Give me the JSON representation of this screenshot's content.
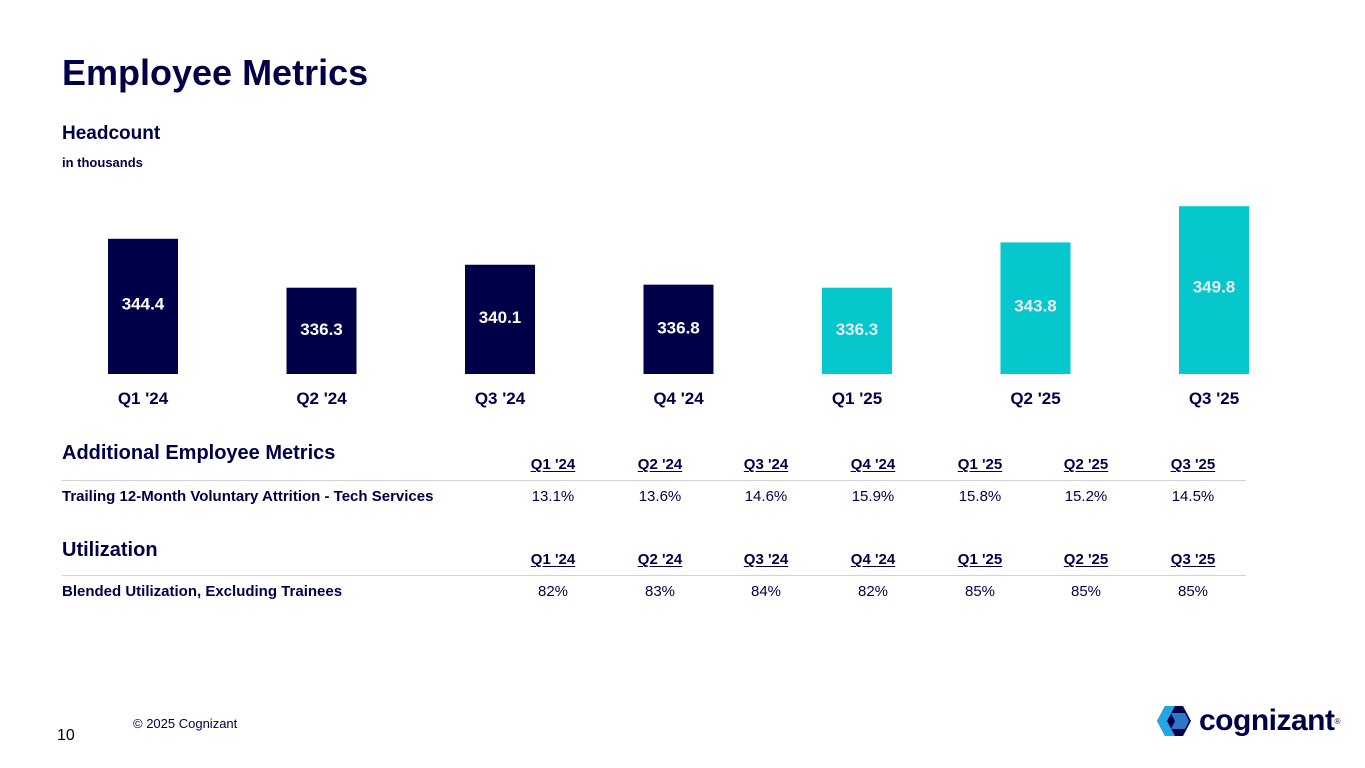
{
  "page": {
    "title": "Employee Metrics",
    "page_number": "10",
    "copyright": "© 2025 Cognizant",
    "logo_text": "cognizant",
    "logo_mark": "®"
  },
  "headcount": {
    "title": "Headcount",
    "unit": "in thousands"
  },
  "chart_data": {
    "type": "bar",
    "title": "Headcount",
    "subtitle": "in thousands",
    "categories": [
      "Q1 '24",
      "Q2 '24",
      "Q3 '24",
      "Q4 '24",
      "Q1 '25",
      "Q2 '25",
      "Q3 '25"
    ],
    "values": [
      344.4,
      336.3,
      340.1,
      336.8,
      336.3,
      343.8,
      349.8
    ],
    "labels": [
      "344.4",
      "336.3",
      "340.1",
      "336.8",
      "336.3",
      "343.8",
      "349.8"
    ],
    "bar_colors": [
      "#000048",
      "#000048",
      "#000048",
      "#000048",
      "#06c7cc",
      "#06c7cc",
      "#06c7cc"
    ],
    "ylim": [
      322,
      350
    ],
    "xlabel": "",
    "ylabel": "",
    "grid": false
  },
  "additional_metrics": {
    "heading": "Additional Employee Metrics",
    "columns": [
      "Q1 '24",
      "Q2 '24",
      "Q3 '24",
      "Q4 '24",
      "Q1 '25",
      "Q2 '25",
      "Q3 '25"
    ],
    "rows": [
      {
        "label": "Trailing 12-Month Voluntary Attrition - Tech Services",
        "values": [
          "13.1%",
          "13.6%",
          "14.6%",
          "15.9%",
          "15.8%",
          "15.2%",
          "14.5%"
        ]
      }
    ]
  },
  "utilization": {
    "heading": "Utilization",
    "columns": [
      "Q1 '24",
      "Q2 '24",
      "Q3 '24",
      "Q4 '24",
      "Q1 '25",
      "Q2 '25",
      "Q3 '25"
    ],
    "rows": [
      {
        "label": "Blended Utilization, Excluding Trainees",
        "values": [
          "82%",
          "83%",
          "84%",
          "82%",
          "85%",
          "85%",
          "85%"
        ]
      }
    ]
  },
  "colors": {
    "navy": "#000048",
    "teal": "#06c7cc",
    "label_light": "#ffffff",
    "label_dark": "#e8ecf3"
  }
}
